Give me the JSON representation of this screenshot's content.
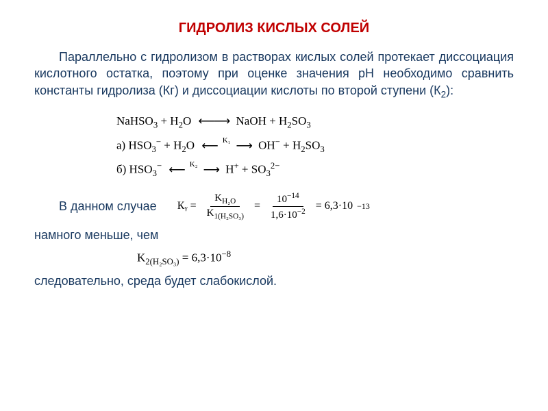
{
  "title": {
    "text": "ГИДРОЛИЗ КИСЛЫХ СОЛЕЙ",
    "color": "#c00000",
    "fontsize": 20
  },
  "paragraph": {
    "text": "Параллельно с гидролизом в растворах кислых солей протекает диссоциация кислотного остатка, поэтому при оценке значения рН необходимо сравнить константы гидролиза (Кг) и диссоциации кислоты по второй ступени (К",
    "sub": "2",
    "tail": "):",
    "color": "#17375e",
    "fontsize": 18
  },
  "equations": {
    "color": "#000000",
    "fontsize": 17,
    "line1": {
      "lhs": "NaHSO",
      "lhs_sub": "3",
      "plus1": " + H",
      "plus1_sub": "2",
      "plus1_tail": "O",
      "arrow": "⟵⟶",
      "rhs1": "NaOH + H",
      "rhs1_sub": "2",
      "rhs1_tail": "SO",
      "rhs1_sub2": "3"
    },
    "line2": {
      "prefix": "а) HSO",
      "sub1": "3",
      "sup1": "−",
      "mid": " + H",
      "sub2": "2",
      "mid2": "O",
      "arrowL": "⟵",
      "klabel": "K₁",
      "arrowR": "⟶",
      "r1": "OH",
      "r1sup": "−",
      "r2": " + H",
      "r2sub": "2",
      "r2b": "SO",
      "r2sub2": "3"
    },
    "line3": {
      "prefix": "б) HSO",
      "sub1": "3",
      "sup1": "−",
      "arrowL": "⟵",
      "klabel": "K₂",
      "arrowR": "⟶",
      "r1": "H",
      "r1sup": "+",
      "r2": " + SO",
      "r2sub": "3",
      "r2sup": "2−"
    }
  },
  "case_label": "В данном случае",
  "calc": {
    "left": "Кᵧ =",
    "frac1_num": "K",
    "frac1_num_sub": "H₂O",
    "frac1_den": "K",
    "frac1_den_sub": "1(H₂SO₃)",
    "eq1": "=",
    "frac2_num": "10",
    "frac2_num_sup": "−14",
    "frac2_den": "1,6·10",
    "frac2_den_sup": "−2",
    "eq2": "= 6,3·10",
    "result_sup": "−13"
  },
  "less_label": "намного меньше, чем",
  "k2expr": {
    "a": "K",
    "sub": "2(H₂SO₃)",
    "b": " = 6,3·10",
    "sup": "−8"
  },
  "conclusion": "следовательно, среда будет слабокислой.",
  "body_color": "#17375e",
  "body_fontsize": 18
}
